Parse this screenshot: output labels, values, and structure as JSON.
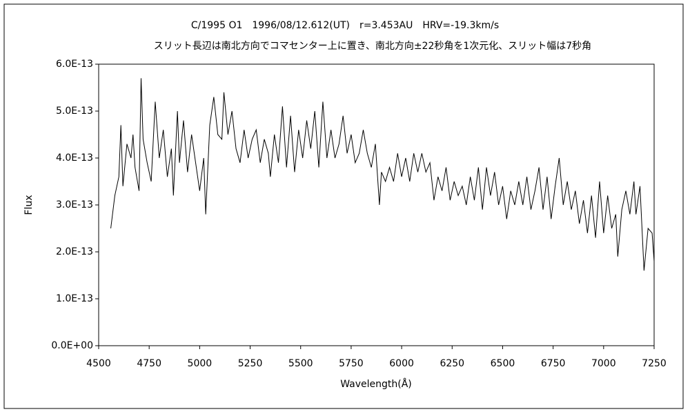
{
  "chart_data": {
    "type": "line",
    "title": "C/1995 O1　1996/08/12.612(UT)　r=3.453AU　HRV=-19.3km/s",
    "subtitle": "スリット長辺は南北方向でコマセンター上に置き、南北方向±22秒角を1次元化、スリット幅は7秒角",
    "xlabel": "Wavelength(Å)",
    "ylabel": "Flux",
    "color": "#000000",
    "xlim": [
      4500,
      7250
    ],
    "xticks": [
      4500,
      4750,
      5000,
      5250,
      5500,
      5750,
      6000,
      6250,
      6500,
      6750,
      7000,
      7250
    ],
    "ylim": [
      0,
      6e-13
    ],
    "yticks": [
      {
        "value": 0,
        "label": "0.0E+00"
      },
      {
        "value": 1e-13,
        "label": "1.0E-13"
      },
      {
        "value": 2e-13,
        "label": "2.0E-13"
      },
      {
        "value": 3e-13,
        "label": "3.0E-13"
      },
      {
        "value": 4e-13,
        "label": "4.0E-13"
      },
      {
        "value": 5e-13,
        "label": "5.0E-13"
      },
      {
        "value": 6e-13,
        "label": "6.0E-13"
      }
    ],
    "grid": false,
    "x": [
      4560,
      4580,
      4600,
      4610,
      4620,
      4640,
      4660,
      4670,
      4680,
      4700,
      4710,
      4720,
      4740,
      4760,
      4780,
      4800,
      4820,
      4840,
      4860,
      4870,
      4890,
      4900,
      4920,
      4940,
      4960,
      4980,
      5000,
      5020,
      5030,
      5050,
      5070,
      5090,
      5110,
      5120,
      5140,
      5160,
      5180,
      5200,
      5220,
      5240,
      5260,
      5280,
      5300,
      5320,
      5340,
      5350,
      5370,
      5390,
      5410,
      5430,
      5450,
      5470,
      5490,
      5510,
      5530,
      5550,
      5570,
      5590,
      5610,
      5630,
      5650,
      5670,
      5690,
      5710,
      5730,
      5750,
      5770,
      5790,
      5810,
      5830,
      5850,
      5870,
      5890,
      5900,
      5920,
      5940,
      5960,
      5980,
      6000,
      6020,
      6040,
      6060,
      6080,
      6100,
      6120,
      6140,
      6160,
      6180,
      6200,
      6220,
      6240,
      6260,
      6280,
      6300,
      6320,
      6340,
      6360,
      6380,
      6400,
      6420,
      6440,
      6460,
      6480,
      6500,
      6520,
      6540,
      6560,
      6580,
      6600,
      6620,
      6640,
      6660,
      6680,
      6700,
      6720,
      6740,
      6760,
      6780,
      6800,
      6820,
      6840,
      6860,
      6880,
      6900,
      6920,
      6940,
      6960,
      6980,
      7000,
      7020,
      7040,
      7060,
      7070,
      7090,
      7110,
      7130,
      7150,
      7160,
      7180,
      7200,
      7220,
      7240,
      7250
    ],
    "values": [
      2.5e-13,
      3.2e-13,
      3.6e-13,
      4.7e-13,
      3.4e-13,
      4.3e-13,
      4e-13,
      4.5e-13,
      3.8e-13,
      3.3e-13,
      5.7e-13,
      4.4e-13,
      3.9e-13,
      3.5e-13,
      5.2e-13,
      4e-13,
      4.6e-13,
      3.6e-13,
      4.2e-13,
      3.2e-13,
      5e-13,
      3.9e-13,
      4.8e-13,
      3.7e-13,
      4.5e-13,
      3.9e-13,
      3.3e-13,
      4e-13,
      2.8e-13,
      4.7e-13,
      5.3e-13,
      4.5e-13,
      4.4e-13,
      5.4e-13,
      4.5e-13,
      5e-13,
      4.2e-13,
      3.9e-13,
      4.6e-13,
      4e-13,
      4.4e-13,
      4.6e-13,
      3.9e-13,
      4.4e-13,
      4.1e-13,
      3.6e-13,
      4.5e-13,
      3.9e-13,
      5.1e-13,
      3.8e-13,
      4.9e-13,
      3.7e-13,
      4.6e-13,
      4e-13,
      4.8e-13,
      4.2e-13,
      5e-13,
      3.8e-13,
      5.2e-13,
      4e-13,
      4.6e-13,
      4e-13,
      4.3e-13,
      4.9e-13,
      4.1e-13,
      4.5e-13,
      3.9e-13,
      4.1e-13,
      4.6e-13,
      4.1e-13,
      3.8e-13,
      4.3e-13,
      3e-13,
      3.7e-13,
      3.5e-13,
      3.8e-13,
      3.5e-13,
      4.1e-13,
      3.6e-13,
      4e-13,
      3.5e-13,
      4.1e-13,
      3.7e-13,
      4.1e-13,
      3.7e-13,
      3.9e-13,
      3.1e-13,
      3.6e-13,
      3.3e-13,
      3.8e-13,
      3.1e-13,
      3.5e-13,
      3.2e-13,
      3.4e-13,
      3e-13,
      3.6e-13,
      3.1e-13,
      3.8e-13,
      2.9e-13,
      3.8e-13,
      3.2e-13,
      3.7e-13,
      3e-13,
      3.4e-13,
      2.7e-13,
      3.3e-13,
      3e-13,
      3.5e-13,
      3e-13,
      3.6e-13,
      2.9e-13,
      3.3e-13,
      3.8e-13,
      2.9e-13,
      3.6e-13,
      2.7e-13,
      3.4e-13,
      4e-13,
      3e-13,
      3.5e-13,
      2.9e-13,
      3.3e-13,
      2.6e-13,
      3.1e-13,
      2.4e-13,
      3.2e-13,
      2.3e-13,
      3.5e-13,
      2.4e-13,
      3.2e-13,
      2.5e-13,
      2.8e-13,
      1.9e-13,
      2.9e-13,
      3.3e-13,
      2.8e-13,
      3.5e-13,
      2.8e-13,
      3.4e-13,
      1.6e-13,
      2.5e-13,
      2.4e-13,
      1.8e-13
    ]
  }
}
